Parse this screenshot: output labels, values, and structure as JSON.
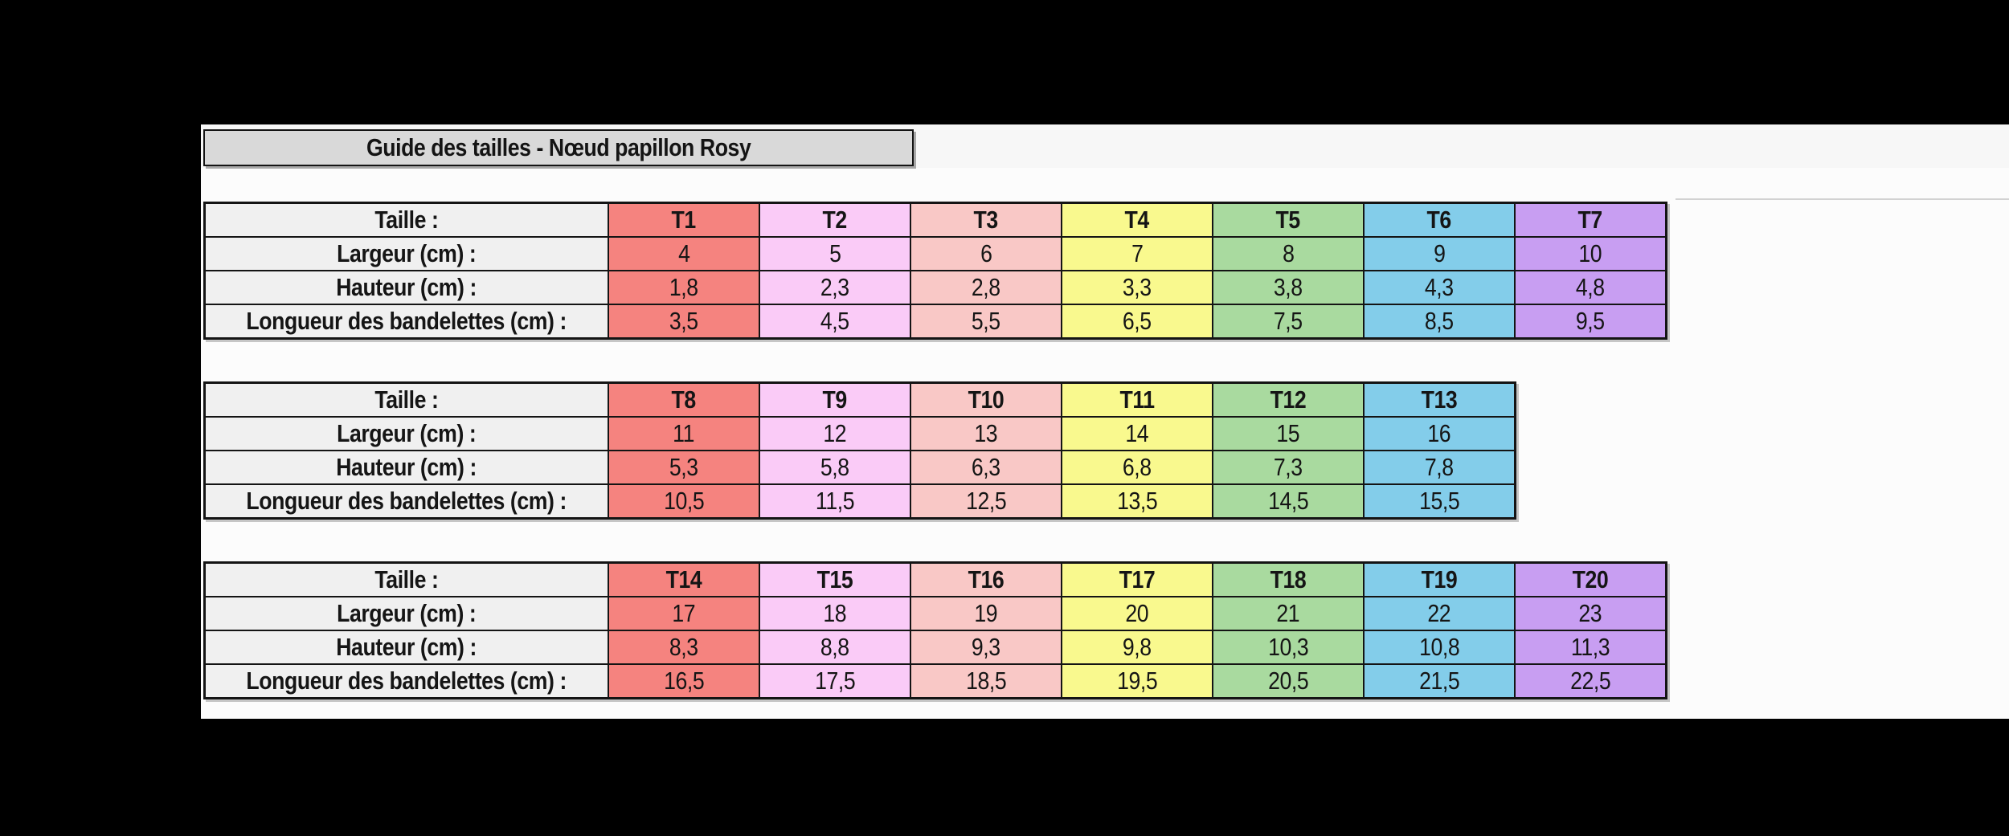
{
  "page": {
    "title": "Guide des tailles - Nœud papillon Rosy",
    "background_color": "#000000",
    "page_background": "#FCFCFC",
    "title_box_fill": "#D9D9D9",
    "label_cell_fill": "#F0F0F0",
    "border_color": "#141414"
  },
  "row_labels": [
    "Taille :",
    "Largeur (cm) :",
    "Hauteur (cm) :",
    "Longueur des bandelettes (cm) :"
  ],
  "column_colors": [
    "#F5837F",
    "#FACBF7",
    "#F9C8C6",
    "#F9F98E",
    "#A9DA9F",
    "#83CDEA",
    "#C89EF2"
  ],
  "tables": [
    {
      "sizes": [
        "T1",
        "T2",
        "T3",
        "T4",
        "T5",
        "T6",
        "T7"
      ],
      "largeur": [
        "4",
        "5",
        "6",
        "7",
        "8",
        "9",
        "10"
      ],
      "hauteur": [
        "1,8",
        "2,3",
        "2,8",
        "3,3",
        "3,8",
        "4,3",
        "4,8"
      ],
      "longueur": [
        "3,5",
        "4,5",
        "5,5",
        "6,5",
        "7,5",
        "8,5",
        "9,5"
      ]
    },
    {
      "sizes": [
        "T8",
        "T9",
        "T10",
        "T11",
        "T12",
        "T13"
      ],
      "largeur": [
        "11",
        "12",
        "13",
        "14",
        "15",
        "16"
      ],
      "hauteur": [
        "5,3",
        "5,8",
        "6,3",
        "6,8",
        "7,3",
        "7,8"
      ],
      "longueur": [
        "10,5",
        "11,5",
        "12,5",
        "13,5",
        "14,5",
        "15,5"
      ]
    },
    {
      "sizes": [
        "T14",
        "T15",
        "T16",
        "T17",
        "T18",
        "T19",
        "T20"
      ],
      "largeur": [
        "17",
        "18",
        "19",
        "20",
        "21",
        "22",
        "23"
      ],
      "hauteur": [
        "8,3",
        "8,8",
        "9,3",
        "9,8",
        "10,3",
        "10,8",
        "11,3"
      ],
      "longueur": [
        "16,5",
        "17,5",
        "18,5",
        "19,5",
        "20,5",
        "21,5",
        "22,5"
      ]
    }
  ]
}
